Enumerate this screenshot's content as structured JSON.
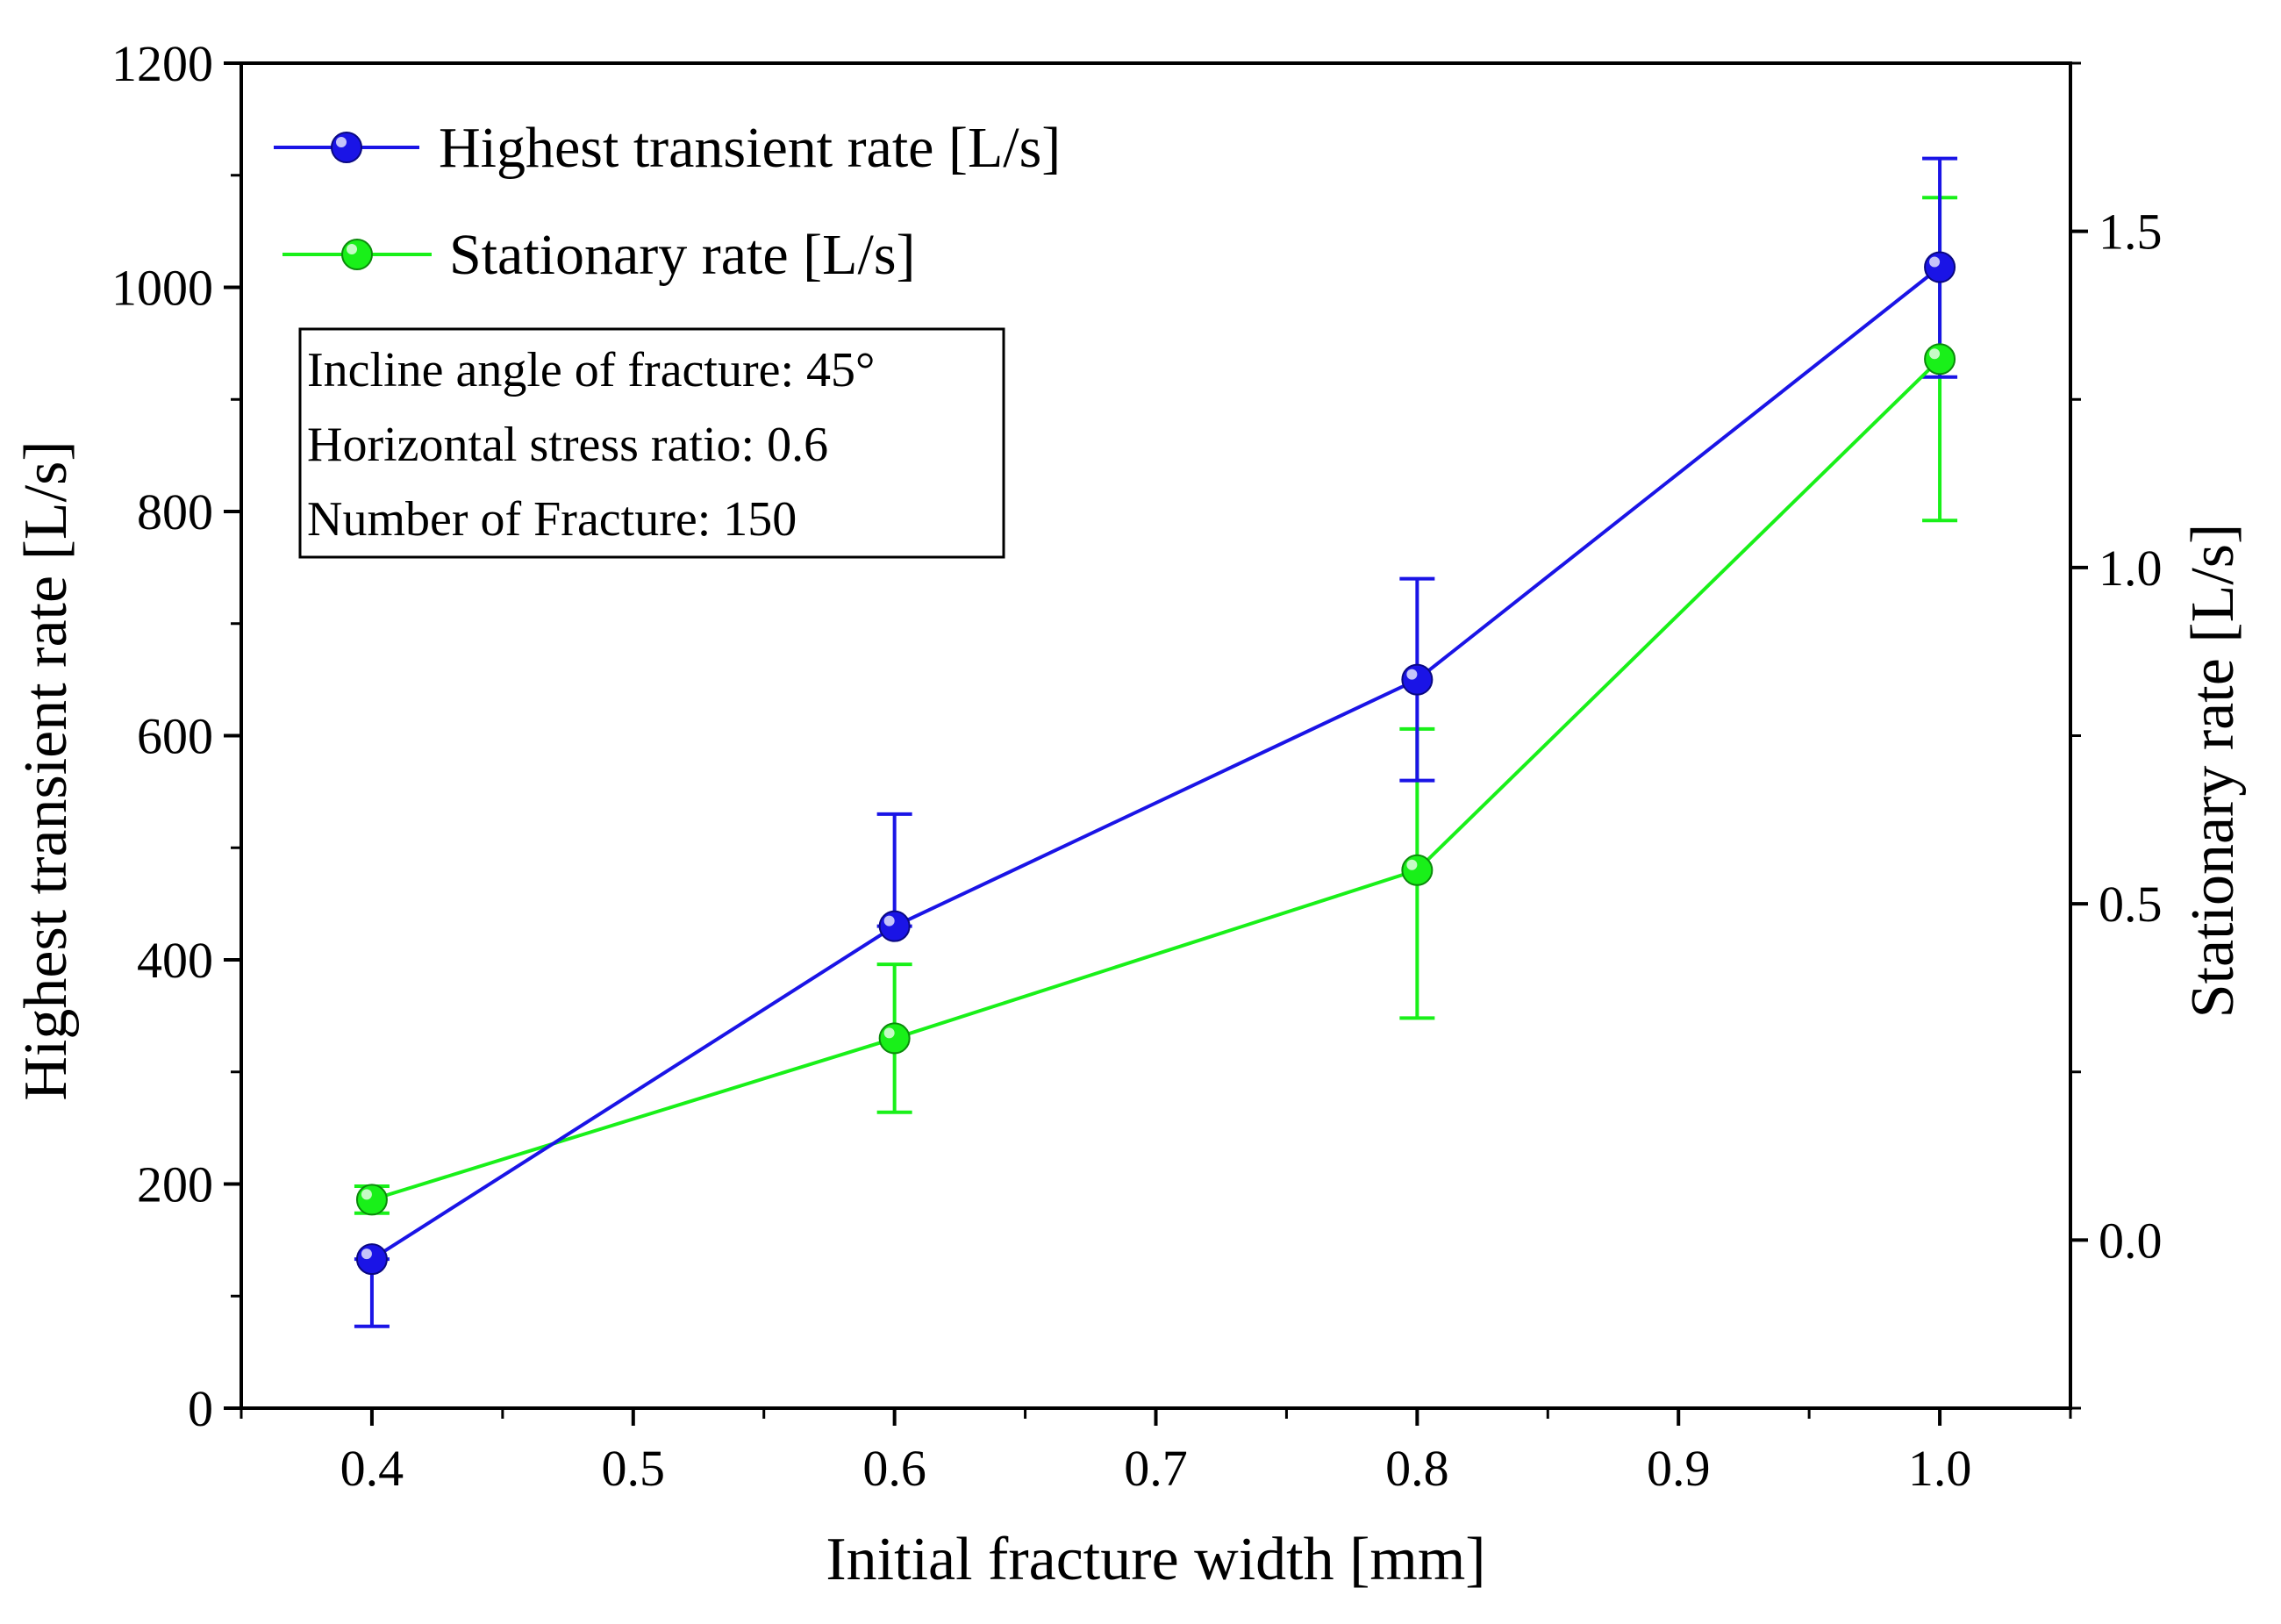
{
  "chart_data": {
    "type": "line",
    "xlabel": "Initial fracture width [mm]",
    "ylabel": "Highest transient rate [L/s]",
    "y2label": "Stationary rate [L/s]",
    "xlim": [
      0.35,
      1.05
    ],
    "ylim": [
      0,
      1200
    ],
    "y2lim": [
      -0.25,
      1.75
    ],
    "x_ticks": [
      0.4,
      0.5,
      0.6,
      0.7,
      0.8,
      0.9,
      1.0
    ],
    "x_tick_labels": [
      "0.4",
      "0.5",
      "0.6",
      "0.7",
      "0.8",
      "0.9",
      "1.0"
    ],
    "y_ticks": [
      0,
      200,
      400,
      600,
      800,
      1000,
      1200
    ],
    "y_tick_labels": [
      "0",
      "200",
      "400",
      "600",
      "800",
      "1000",
      "1200"
    ],
    "y2_ticks": [
      0.0,
      0.5,
      1.0,
      1.5
    ],
    "y2_tick_labels": [
      "0.0",
      "0.5",
      "1.0",
      "1.5"
    ],
    "legend_placement": "top-left",
    "series": [
      {
        "name": "Highest transient rate [L/s]",
        "axis": "left",
        "color": "#1a14e6",
        "x": [
          0.4,
          0.6,
          0.8,
          1.0
        ],
        "values": [
          133,
          430,
          650,
          1018
        ],
        "err_low": [
          73,
          430,
          560,
          920
        ],
        "err_high": [
          133,
          530,
          740,
          1115
        ]
      },
      {
        "name": "Stationary rate [L/s]",
        "axis": "right",
        "color": "#19f019",
        "x": [
          0.4,
          0.6,
          0.8,
          1.0
        ],
        "values": [
          0.06,
          0.3,
          0.55,
          1.31
        ],
        "err_low": [
          0.04,
          0.19,
          0.33,
          1.07
        ],
        "err_high": [
          0.08,
          0.41,
          0.76,
          1.55
        ]
      }
    ],
    "annotations": [
      "Incline angle of fracture: 45°",
      "Horizontal stress ratio: 0.6",
      "Number of Fracture: 150"
    ]
  }
}
